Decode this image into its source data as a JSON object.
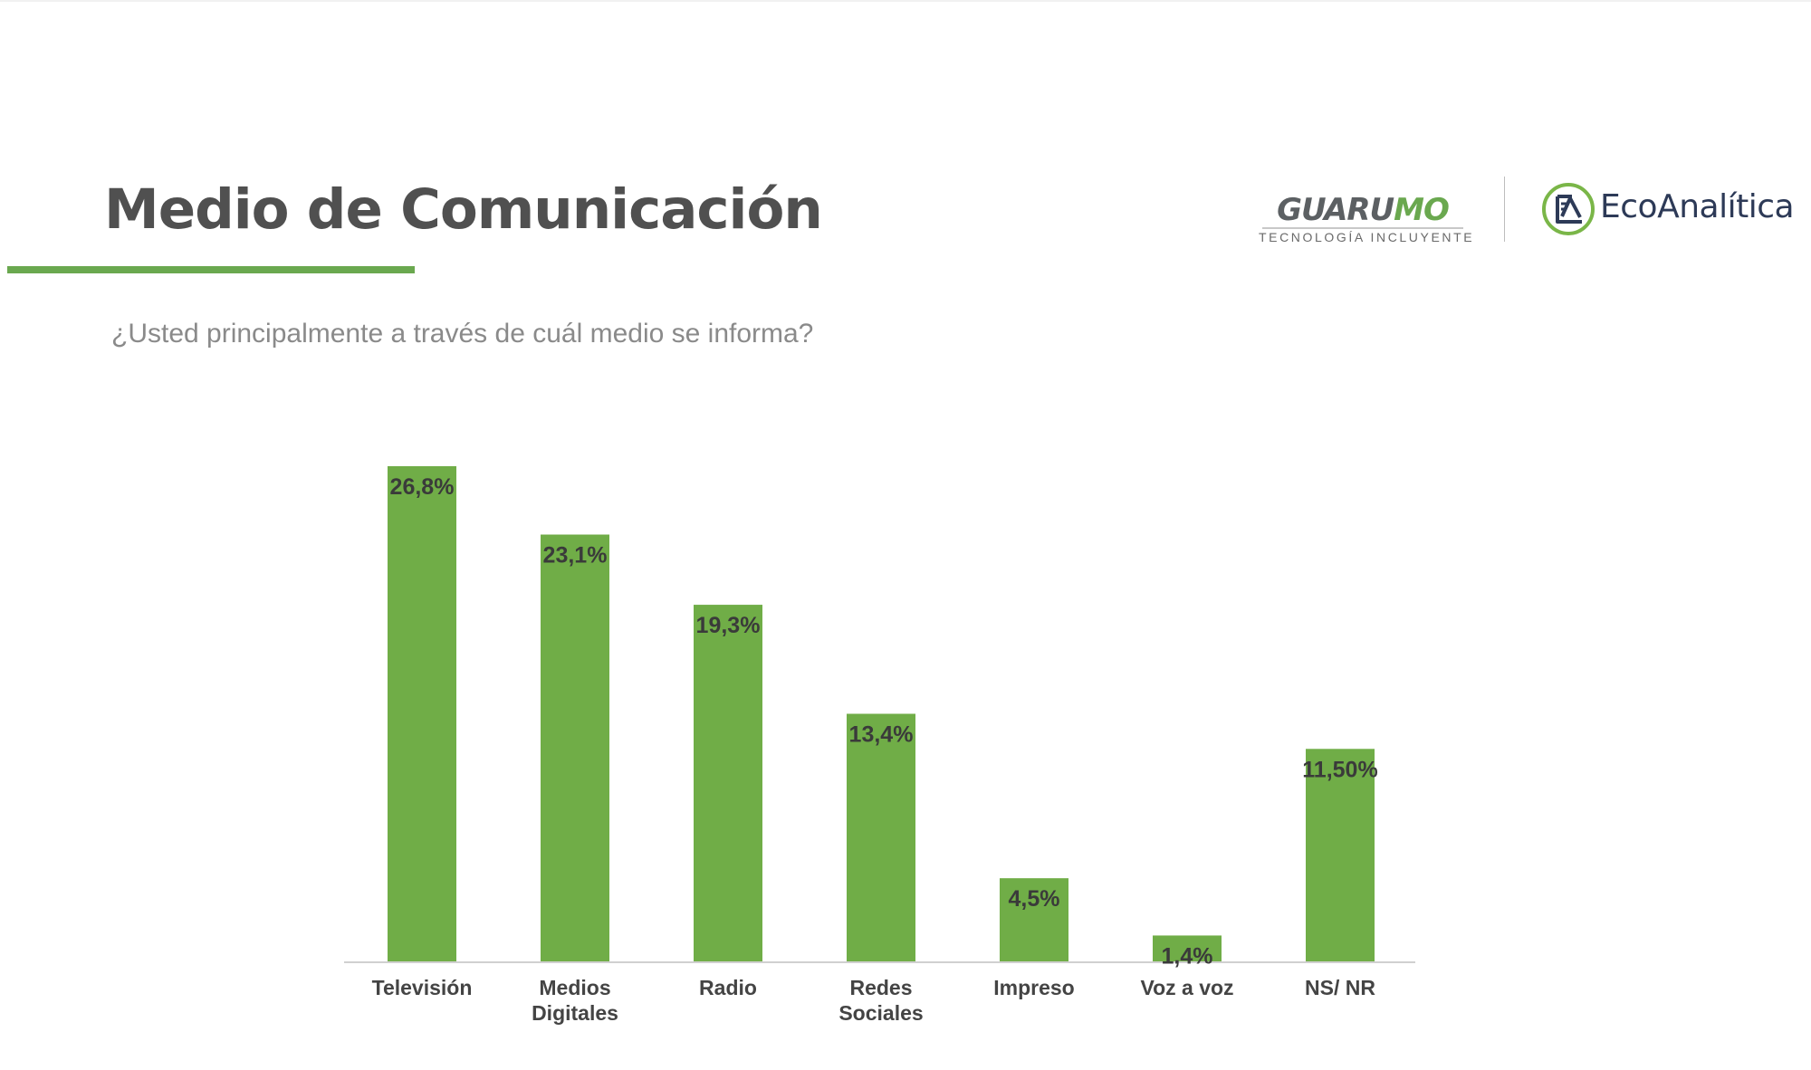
{
  "header": {
    "title": "Medio de Comunicación",
    "question": "¿Usted principalmente a través de cuál medio se informa?"
  },
  "logos": {
    "guarumo": {
      "word_gray": "GUARU",
      "word_green": "MO",
      "tagline": "TECNOLOGÍA INCLUYENTE"
    },
    "ecoanalitica": {
      "name": "EcoAnalítica"
    }
  },
  "colors": {
    "bar": "#70ad47",
    "accent": "#6aa84f",
    "title": "#505050",
    "question": "#8a8a8a"
  },
  "chart_data": {
    "type": "bar",
    "categories": [
      [
        "Televisión"
      ],
      [
        "Medios",
        "Digitales"
      ],
      [
        "Radio"
      ],
      [
        "Redes",
        "Sociales"
      ],
      [
        "Impreso"
      ],
      [
        "Voz a voz"
      ],
      [
        "NS/ NR"
      ]
    ],
    "values": [
      26.8,
      23.1,
      19.3,
      13.4,
      4.5,
      1.4,
      11.5
    ],
    "data_labels": [
      "26,8%",
      "23,1%",
      "19,3%",
      "13,4%",
      "4,5%",
      "1,4%",
      "11,50%"
    ],
    "ylim": [
      0,
      26.8
    ],
    "grid": false,
    "y_axis_visible": false,
    "legend": "none"
  }
}
